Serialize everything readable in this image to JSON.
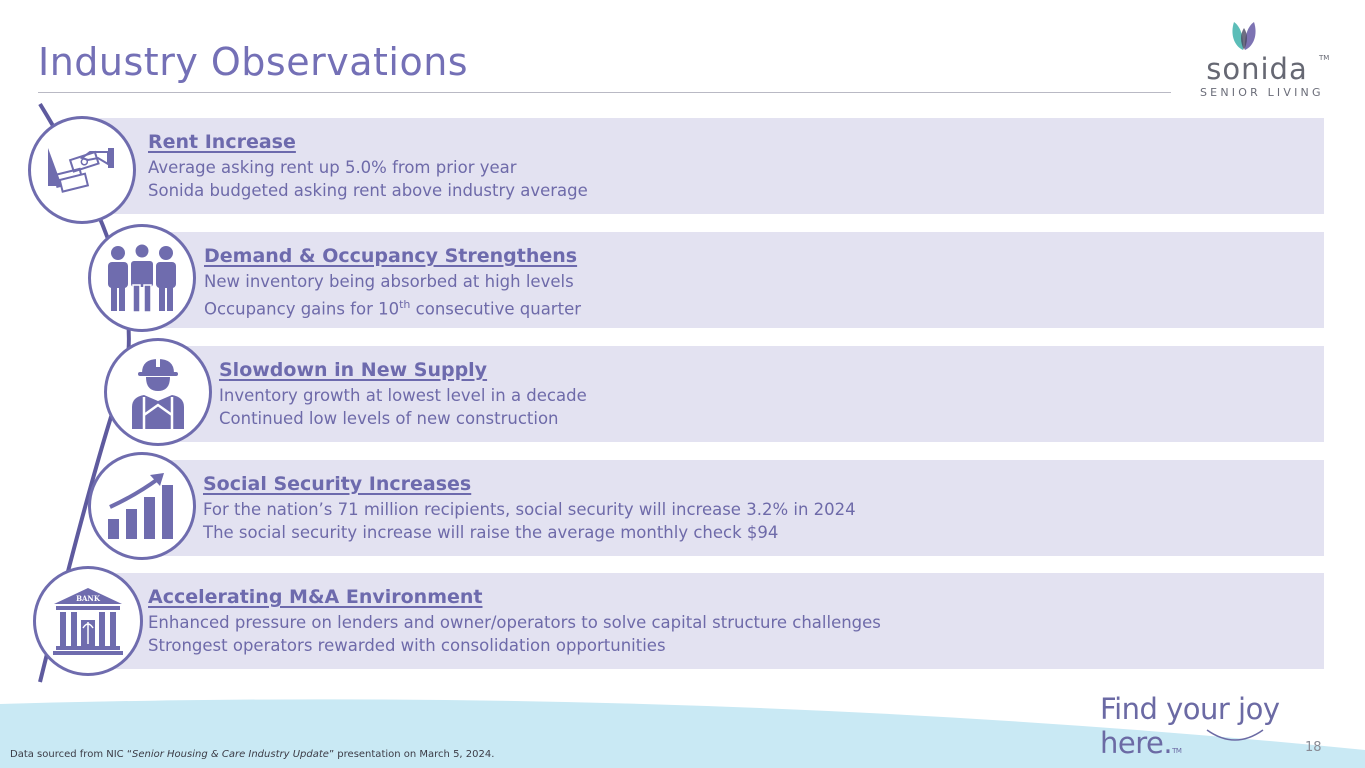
{
  "page": {
    "title": "Industry Observations",
    "page_number": "18"
  },
  "logo": {
    "word": "sonida",
    "tm": "TM",
    "subtitle": "SENIOR LIVING"
  },
  "observations": [
    {
      "title": "Rent Increase",
      "lines": [
        "Average asking rent up 5.0% from prior year",
        "Sonida budgeted asking rent above industry average"
      ],
      "icon": "hand-giving-money-icon"
    },
    {
      "title": "Demand & Occupancy Strengthens",
      "lines": [
        "New inventory being absorbed at high levels"
      ],
      "line2_prefix": "Occupancy gains for 10",
      "line2_sup": "th",
      "line2_suffix": " consecutive quarter",
      "icon": "group-of-people-icon"
    },
    {
      "title": "Slowdown in New Supply",
      "lines": [
        "Inventory growth at lowest level in a decade",
        "Continued low levels of new construction"
      ],
      "icon": "construction-worker-icon"
    },
    {
      "title": "Social Security Increases",
      "lines": [
        "For the nation’s 71 million recipients, social security will increase 3.2% in 2024",
        "The social security increase will raise the average monthly check $94"
      ],
      "icon": "rising-bar-chart-icon"
    },
    {
      "title": "Accelerating M&A Environment",
      "lines": [
        "Enhanced pressure on lenders and owner/operators to solve capital structure challenges",
        "Strongest operators rewarded with consolidation opportunities"
      ],
      "icon": "bank-building-icon",
      "icon_label": "BANK"
    }
  ],
  "footer": {
    "source_prefix": "Data sourced from NIC “",
    "source_title": "Senior Housing & Care Industry Update",
    "source_suffix": "” presentation on March 5, 2024.",
    "tagline": "Find your joy here.",
    "tagline_tm": "TM"
  },
  "colors": {
    "accent": "#7470b6",
    "row_background": "#e3e2f1",
    "wave": "#c9e9f4",
    "logo_teal": "#5cbdb8",
    "logo_purple": "#7d73b3"
  }
}
